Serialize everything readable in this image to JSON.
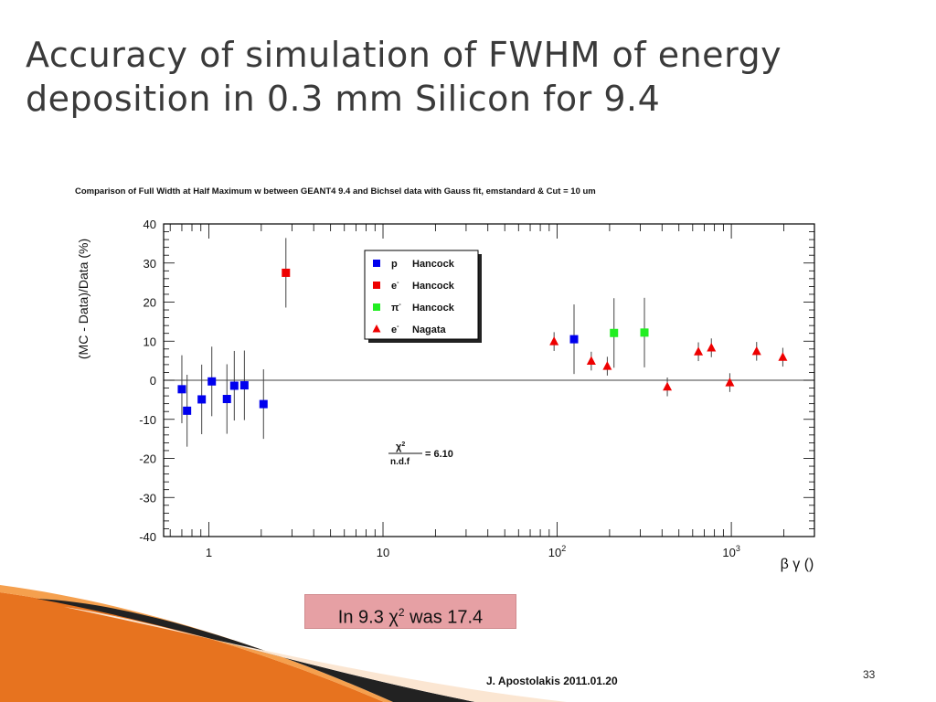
{
  "slide": {
    "title_line1": "Accuracy of simulation of FWHM of energy",
    "title_line2": "deposition in 0.3 mm Silicon for 9.4",
    "note_prefix": "In 9.3  χ",
    "note_sup": "2",
    "note_suffix": " was 17.4",
    "footer": "J. Apostolakis 2011.01.20",
    "page_number": "33"
  },
  "chart_data": {
    "type": "scatter",
    "title": "Comparison of Full Width at Half Maximum w between GEANT4 9.4 and Bichsel data with Gauss fit, emstandard & Cut = 10 um",
    "xlabel": "β γ ()",
    "ylabel": "(MC - Data)/Data (%)",
    "xscale": "log",
    "xlim": [
      0.55,
      3000
    ],
    "ylim": [
      -40,
      40
    ],
    "yticks": [
      40,
      30,
      20,
      10,
      0,
      -10,
      -20,
      -30,
      -40
    ],
    "xtick_labels": [
      {
        "value": 1,
        "label": "1"
      },
      {
        "value": 10,
        "label": "10"
      },
      {
        "value": 100,
        "label": "10",
        "exp": "2"
      },
      {
        "value": 1000,
        "label": "10",
        "exp": "3"
      }
    ],
    "annotation": {
      "numerator": "χ",
      "numerator_exp": "2",
      "denominator": "n.d.f",
      "value": "= 6.10"
    },
    "legend_position": "top-center",
    "series": [
      {
        "legend_particle": "p",
        "legend_sup": "",
        "legend_source": "Hancock",
        "marker": "square",
        "color": "#0000ee",
        "points": [
          {
            "x": 0.7,
            "y": -2.3,
            "err": 8.7
          },
          {
            "x": 0.75,
            "y": -7.8,
            "err": 9.2
          },
          {
            "x": 0.91,
            "y": -4.9,
            "err": 8.9
          },
          {
            "x": 1.04,
            "y": -0.3,
            "err": 8.9
          },
          {
            "x": 1.27,
            "y": -4.8,
            "err": 8.9
          },
          {
            "x": 1.4,
            "y": -1.4,
            "err": 8.9
          },
          {
            "x": 1.6,
            "y": -1.3,
            "err": 8.9
          },
          {
            "x": 2.06,
            "y": -6.1,
            "err": 8.9
          },
          {
            "x": 125,
            "y": 10.5,
            "err": 8.9
          }
        ]
      },
      {
        "legend_particle": "e",
        "legend_sup": "-",
        "legend_source": "Hancock",
        "marker": "square",
        "color": "#ee0000",
        "points": [
          {
            "x": 2.77,
            "y": 27.5,
            "err": 8.9
          }
        ]
      },
      {
        "legend_particle": "π",
        "legend_sup": "-",
        "legend_source": "Hancock",
        "marker": "square",
        "color": "#22ee22",
        "points": [
          {
            "x": 212,
            "y": 12.1,
            "err": 8.9
          },
          {
            "x": 317,
            "y": 12.2,
            "err": 8.9
          }
        ]
      },
      {
        "legend_particle": "e",
        "legend_sup": "-",
        "legend_source": "Nagata",
        "marker": "triangle",
        "color": "#ee0000",
        "points": [
          {
            "x": 96,
            "y": 9.9,
            "err": 2.4
          },
          {
            "x": 157,
            "y": 4.9,
            "err": 2.4
          },
          {
            "x": 194,
            "y": 3.6,
            "err": 2.4
          },
          {
            "x": 429,
            "y": -1.7,
            "err": 2.4
          },
          {
            "x": 647,
            "y": 7.3,
            "err": 2.4
          },
          {
            "x": 768,
            "y": 8.3,
            "err": 2.4
          },
          {
            "x": 980,
            "y": -0.6,
            "err": 2.4
          },
          {
            "x": 1397,
            "y": 7.4,
            "err": 2.4
          },
          {
            "x": 1975,
            "y": 5.9,
            "err": 2.4
          }
        ]
      }
    ]
  }
}
